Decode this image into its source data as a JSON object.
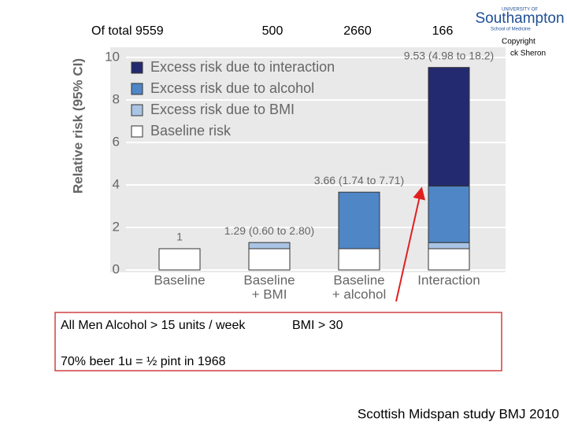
{
  "header": {
    "total": "Of total 9559",
    "counts": [
      "500",
      "2660",
      "166"
    ]
  },
  "logo": {
    "university": "UNIVERSITY OF",
    "name": "Southampton",
    "school": "School of Medicine"
  },
  "copyright": [
    "Copyright",
    "ck Sheron"
  ],
  "chart_data": {
    "type": "stacked-bar",
    "y_label": "Relative risk (95% CI)",
    "categories": [
      [
        "Baseline"
      ],
      [
        "Baseline",
        "+ BMI"
      ],
      [
        "Baseline",
        "+ alcohol"
      ],
      [
        "Interaction"
      ]
    ],
    "series": [
      {
        "name": "Baseline risk",
        "color": "#ffffff",
        "values": [
          1,
          1,
          1,
          1
        ]
      },
      {
        "name": "Excess risk due to BMI",
        "color": "#a9c4e4",
        "values": [
          null,
          0.29,
          null,
          0.29
        ]
      },
      {
        "name": "Excess risk due to alcohol",
        "color": "#4f86c6",
        "values": [
          null,
          null,
          2.66,
          2.66
        ]
      },
      {
        "name": "Excess risk due to interaction",
        "color": "#232a6f",
        "values": [
          null,
          null,
          null,
          5.58
        ]
      }
    ],
    "totals": [
      1,
      1.29,
      3.66,
      9.53
    ],
    "total_labels": [
      "1",
      "1.29 (0.60 to 2.80)",
      "3.66 (1.74 to 7.71)",
      "9.53 (4.98 to 18.2)"
    ],
    "ylim": [
      0,
      10
    ],
    "yticks": [
      0,
      2,
      4,
      6,
      8,
      10
    ],
    "grid": true
  },
  "box": {
    "line1a": "All Men Alcohol > 15 units / week",
    "line1b": "BMI > 30",
    "line2": "70% beer 1u = ½ pint in 1968"
  },
  "footer": "Scottish Midspan study BMJ 2010"
}
